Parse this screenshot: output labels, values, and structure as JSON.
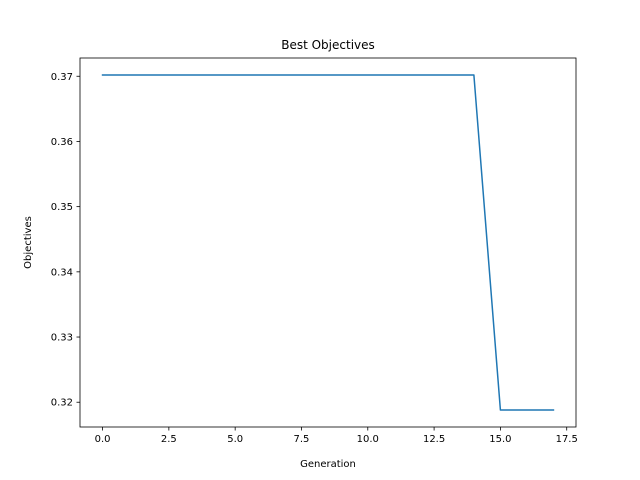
{
  "chart_data": {
    "type": "line",
    "title": "Best Objectives",
    "xlabel": "Generation",
    "ylabel": "Objectives",
    "xlim": [
      -0.85,
      17.85
    ],
    "ylim": [
      0.3162,
      0.3728
    ],
    "x_ticks": [
      0.0,
      2.5,
      5.0,
      7.5,
      10.0,
      12.5,
      15.0,
      17.5
    ],
    "x_tick_labels": [
      "0.0",
      "2.5",
      "5.0",
      "7.5",
      "10.0",
      "12.5",
      "15.0",
      "17.5"
    ],
    "y_ticks": [
      0.32,
      0.33,
      0.34,
      0.35,
      0.36,
      0.37
    ],
    "y_tick_labels": [
      "0.32",
      "0.33",
      "0.34",
      "0.35",
      "0.36",
      "0.37"
    ],
    "grid": false,
    "legend": "none",
    "series": [
      {
        "color": "#1f77b4",
        "x": [
          0,
          1,
          2,
          3,
          4,
          5,
          6,
          7,
          8,
          9,
          10,
          11,
          12,
          13,
          14,
          15,
          16,
          17
        ],
        "y": [
          0.3702,
          0.3702,
          0.3702,
          0.3702,
          0.3702,
          0.3702,
          0.3702,
          0.3702,
          0.3702,
          0.3702,
          0.3702,
          0.3702,
          0.3702,
          0.3702,
          0.3702,
          0.3188,
          0.3188,
          0.3188
        ]
      }
    ]
  }
}
